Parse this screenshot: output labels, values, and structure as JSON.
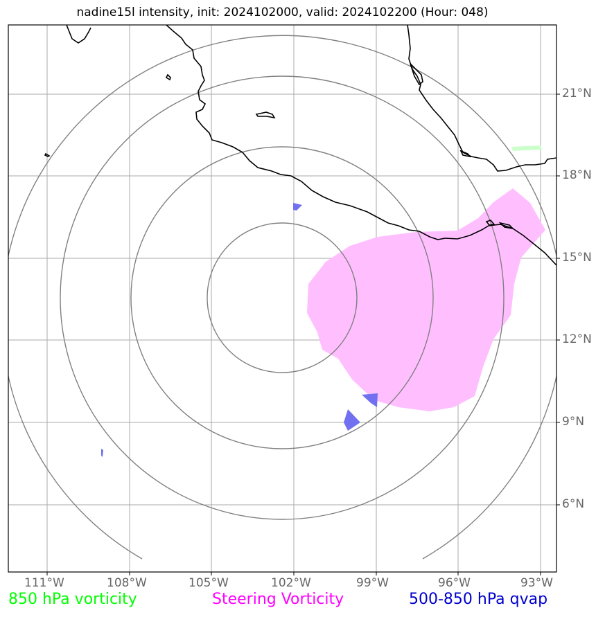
{
  "title": "nadine15l intensity, init: 2024102000, valid: 2024102200 (Hour: 048)",
  "axes": {
    "longitudes": [
      "111°W",
      "108°W",
      "105°W",
      "102°W",
      "99°W",
      "96°W",
      "93°W"
    ],
    "latitudes": [
      "21°N",
      "18°N",
      "15°N",
      "12°N",
      "9°N",
      "6°N"
    ]
  },
  "legend": [
    {
      "label": "850 hPa vorticity",
      "color": "#00ff00"
    },
    {
      "label": "Steering Vorticity",
      "color": "#ff00ff"
    },
    {
      "label": "500-850 hPa qvap",
      "color": "#0000cc"
    }
  ],
  "colors": {
    "steering_fill": "#ffbfff",
    "qvap_fill": "#7070f0",
    "vorticity_fill": "#ccffcc",
    "grid": "#aaaaaa",
    "range_rings": "#808080",
    "coastline": "#000000"
  }
}
